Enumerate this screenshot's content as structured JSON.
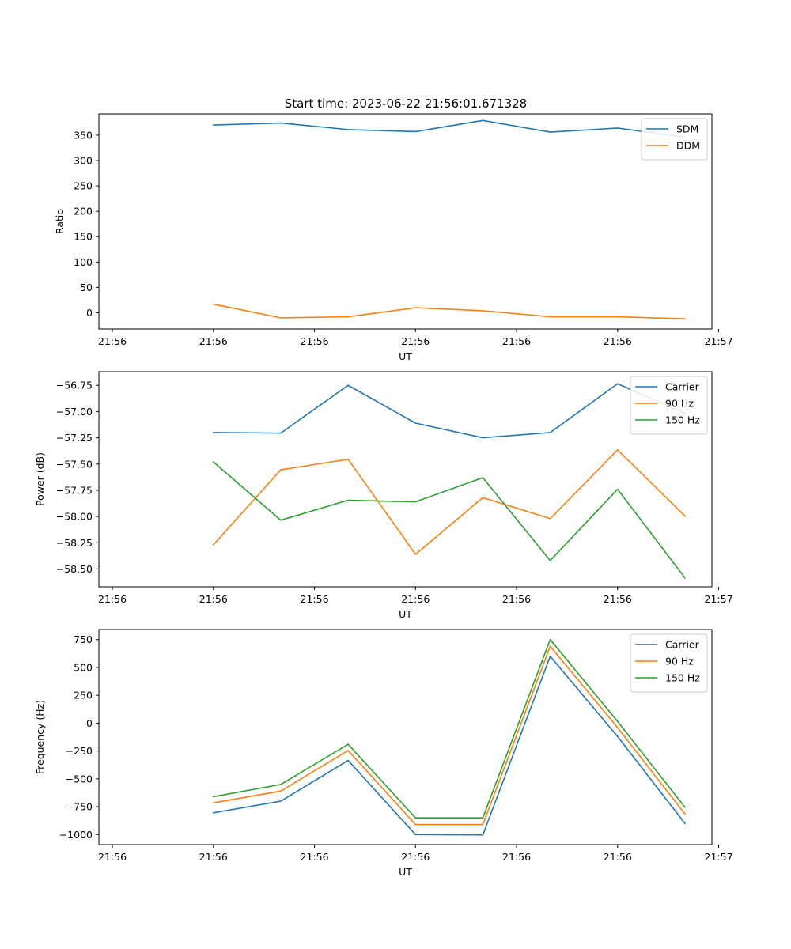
{
  "figure_title": "Start time: 2023-06-22 21:56:01.671328",
  "chart_data": [
    {
      "type": "line",
      "title": "Start time: 2023-06-22 21:56:01.671328",
      "xlabel": "UT",
      "ylabel": "Ratio",
      "x": [
        1,
        2,
        3,
        4,
        5,
        6,
        7,
        8
      ],
      "xlim": [
        -0.7,
        8.4
      ],
      "xtick_values": [
        -0.5,
        1.0,
        2.5,
        4.0,
        5.5,
        7.0,
        8.5
      ],
      "xtick_labels": [
        "21:56",
        "21:56",
        "21:56",
        "21:56",
        "21:56",
        "21:56",
        "21:57"
      ],
      "ylim": [
        -32,
        392
      ],
      "yticks": [
        0,
        50,
        100,
        150,
        200,
        250,
        300,
        350
      ],
      "ytick_labels": [
        "0",
        "50",
        "100",
        "150",
        "200",
        "250",
        "300",
        "350"
      ],
      "legend_position": "top-right",
      "series": [
        {
          "name": "SDM",
          "color": "#1f77b4",
          "values": [
            370,
            374,
            361,
            357,
            379,
            356,
            364,
            346
          ]
        },
        {
          "name": "DDM",
          "color": "#ff7f0e",
          "values": [
            17,
            -10,
            -8,
            10,
            4,
            -8,
            -8,
            -12
          ]
        }
      ]
    },
    {
      "type": "line",
      "title": "",
      "xlabel": "UT",
      "ylabel": "Power (dB)",
      "x": [
        1,
        2,
        3,
        4,
        5,
        6,
        7,
        8
      ],
      "xlim": [
        -0.7,
        8.4
      ],
      "xtick_values": [
        -0.5,
        1.0,
        2.5,
        4.0,
        5.5,
        7.0,
        8.5
      ],
      "xtick_labels": [
        "21:56",
        "21:56",
        "21:56",
        "21:56",
        "21:56",
        "21:56",
        "21:57"
      ],
      "ylim": [
        -58.67,
        -56.62
      ],
      "yticks": [
        -58.5,
        -58.25,
        -58.0,
        -57.75,
        -57.5,
        -57.25,
        -57.0,
        -56.75
      ],
      "ytick_labels": [
        "−58.50",
        "−58.25",
        "−58.00",
        "−57.75",
        "−57.50",
        "−57.25",
        "−57.00",
        "−56.75"
      ],
      "legend_position": "top-right",
      "series": [
        {
          "name": "Carrier",
          "color": "#1f77b4",
          "values": [
            -57.2,
            -57.205,
            -56.75,
            -57.11,
            -57.25,
            -57.2,
            -56.735,
            -57.015
          ]
        },
        {
          "name": "90 Hz",
          "color": "#ff7f0e",
          "values": [
            -58.27,
            -57.555,
            -57.455,
            -58.36,
            -57.82,
            -58.02,
            -57.365,
            -57.995
          ]
        },
        {
          "name": "150 Hz",
          "color": "#2ca02c",
          "values": [
            -57.48,
            -58.035,
            -57.845,
            -57.86,
            -57.63,
            -58.42,
            -57.74,
            -58.585
          ]
        }
      ]
    },
    {
      "type": "line",
      "title": "",
      "xlabel": "UT",
      "ylabel": "Frequency (Hz)",
      "x": [
        1,
        2,
        3,
        4,
        5,
        6,
        7,
        8
      ],
      "xlim": [
        -0.7,
        8.4
      ],
      "xtick_values": [
        -0.5,
        1.0,
        2.5,
        4.0,
        5.5,
        7.0,
        8.5
      ],
      "xtick_labels": [
        "21:56",
        "21:56",
        "21:56",
        "21:56",
        "21:56",
        "21:56",
        "21:57"
      ],
      "ylim": [
        -1090,
        840
      ],
      "yticks": [
        -1000,
        -750,
        -500,
        -250,
        0,
        250,
        500,
        750
      ],
      "ytick_labels": [
        "−1000",
        "−750",
        "−500",
        "−250",
        "0",
        "250",
        "500",
        "750"
      ],
      "legend_position": "top-right",
      "series": [
        {
          "name": "Carrier",
          "color": "#1f77b4",
          "values": [
            -805,
            -700,
            -335,
            -1000,
            -1003,
            600,
            -120,
            -900
          ]
        },
        {
          "name": "90 Hz",
          "color": "#ff7f0e",
          "values": [
            -715,
            -610,
            -245,
            -910,
            -910,
            690,
            -40,
            -815
          ]
        },
        {
          "name": "150 Hz",
          "color": "#2ca02c",
          "values": [
            -660,
            -550,
            -190,
            -850,
            -850,
            750,
            15,
            -755
          ]
        }
      ]
    }
  ]
}
